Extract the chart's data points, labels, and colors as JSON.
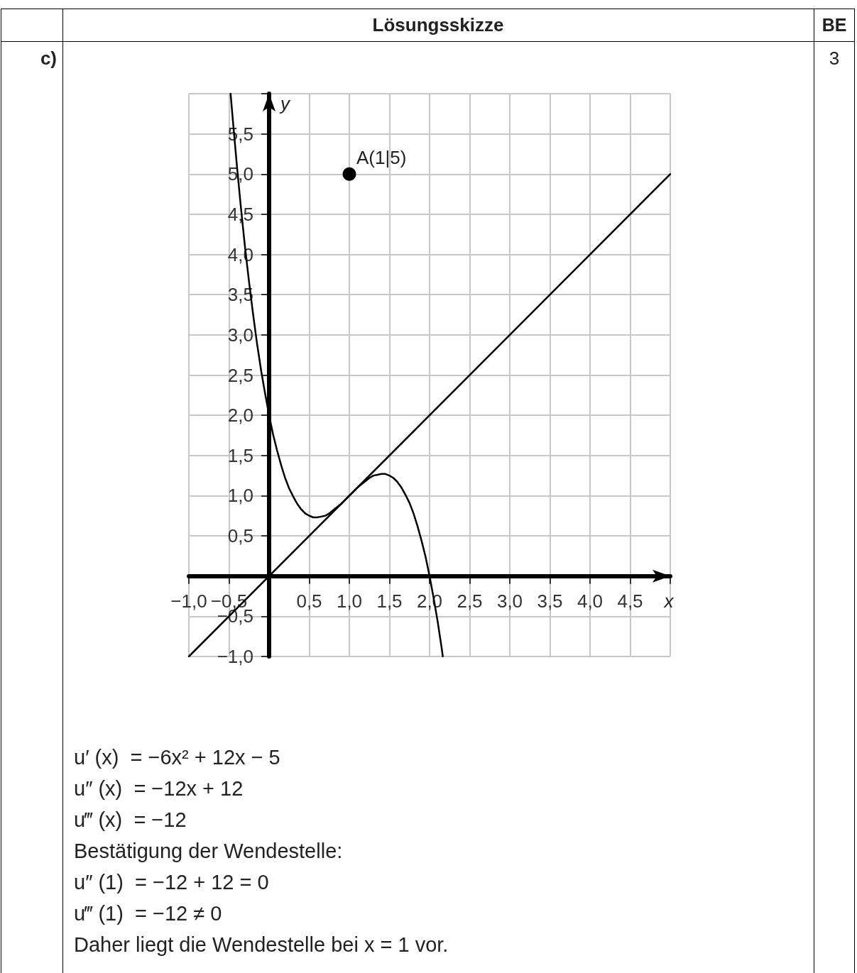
{
  "chart_data": {
    "type": "line",
    "title": "Lösungsskizze",
    "xlabel": "x",
    "ylabel": "y",
    "xlim": [
      -1,
      5
    ],
    "ylim": [
      -1,
      6
    ],
    "xticks": [
      {
        "value": -1,
        "label": "−1,0"
      },
      {
        "value": -0.5,
        "label": "−0,5"
      },
      {
        "value": 0.5,
        "label": "0,5"
      },
      {
        "value": 1,
        "label": "1,0"
      },
      {
        "value": 1.5,
        "label": "1,5"
      },
      {
        "value": 2,
        "label": "2,0"
      },
      {
        "value": 2.5,
        "label": "2,5"
      },
      {
        "value": 3,
        "label": "3,0"
      },
      {
        "value": 3.5,
        "label": "3,5"
      },
      {
        "value": 4,
        "label": "4,0"
      },
      {
        "value": 4.5,
        "label": "4,5"
      }
    ],
    "yticks": [
      {
        "value": -1,
        "label": "−1,0"
      },
      {
        "value": -0.5,
        "label": "−0,5"
      },
      {
        "value": 0.5,
        "label": "0,5"
      },
      {
        "value": 1,
        "label": "1,0"
      },
      {
        "value": 1.5,
        "label": "1,5"
      },
      {
        "value": 2,
        "label": "2,0"
      },
      {
        "value": 2.5,
        "label": "2,5"
      },
      {
        "value": 3,
        "label": "3,0"
      },
      {
        "value": 3.5,
        "label": "3,5"
      },
      {
        "value": 4,
        "label": "4,0"
      },
      {
        "value": 4.5,
        "label": "4,5"
      },
      {
        "value": 5,
        "label": "5,0"
      },
      {
        "value": 5.5,
        "label": "5,5"
      }
    ],
    "grid": true,
    "marker": "none",
    "series": [
      {
        "color": "#000000",
        "x": [
          -0.48,
          -0.45,
          -0.4,
          -0.35,
          -0.3,
          -0.25,
          -0.2,
          -0.15,
          -0.1,
          -0.05,
          0,
          0.05,
          0.1,
          0.15,
          0.2,
          0.25,
          0.3,
          0.35,
          0.4,
          0.45,
          0.5,
          0.55,
          0.6,
          0.65,
          0.7,
          0.75,
          0.8,
          0.85,
          0.9,
          0.95,
          1,
          1.05,
          1.1,
          1.15,
          1.2,
          1.25,
          1.3,
          1.35,
          1.4,
          1.45,
          1.5,
          1.55,
          1.6,
          1.65,
          1.7,
          1.75,
          1.8,
          1.85,
          1.9,
          1.95,
          2,
          2.05,
          2.1,
          2.15,
          2.165
        ],
        "values": [
          6.0,
          5.65,
          5.09,
          4.57,
          4.09,
          3.66,
          3.26,
          2.89,
          2.56,
          2.27,
          2.0,
          1.76,
          1.56,
          1.38,
          1.22,
          1.09,
          0.99,
          0.9,
          0.83,
          0.78,
          0.75,
          0.73,
          0.73,
          0.74,
          0.75,
          0.78,
          0.82,
          0.86,
          0.9,
          0.95,
          1.0,
          1.05,
          1.1,
          1.14,
          1.18,
          1.22,
          1.25,
          1.26,
          1.27,
          1.27,
          1.25,
          1.22,
          1.17,
          1.1,
          1.01,
          0.91,
          0.78,
          0.62,
          0.44,
          0.24,
          0.0,
          -0.27,
          -0.56,
          -0.89,
          -1.0
        ]
      },
      {
        "color": "#000000",
        "x": [
          -1,
          5
        ],
        "values": [
          -1,
          5
        ]
      },
      {
        "type": "scatter",
        "color": "#000000",
        "marker": "circle",
        "x": [
          1
        ],
        "values": [
          5
        ]
      }
    ],
    "annotations": [
      "BE",
      "c)",
      "3",
      {
        "text": "A(1|5)",
        "x": 1,
        "y": 5
      },
      "u′ (x)  = −6x² + 12x − 5",
      "u″ (x)  = −12x + 12",
      "u‴ (x)  = −12",
      "Bestätigung der Wendestelle:",
      "u″ (1)  = −12 + 12 = 0",
      "u‴ (1)  = −12 ≠ 0",
      "Daher liegt die Wendestelle bei x = 1 vor."
    ]
  }
}
